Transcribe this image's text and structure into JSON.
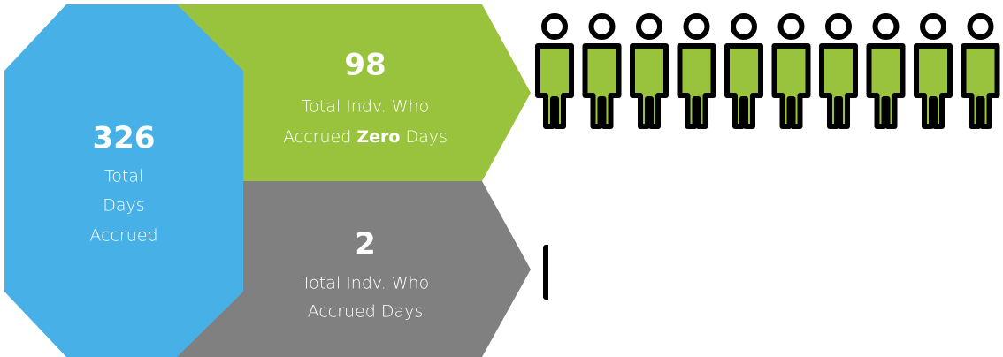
{
  "total": {
    "number": "326",
    "lines": [
      "Total",
      "Days",
      "Accrued"
    ]
  },
  "zero": {
    "number": "98",
    "line1": "Total Indv. Who",
    "line2_before": "Accrued ",
    "line2_bold": "Zero",
    "line2_after": " Days"
  },
  "accrued": {
    "number": "2",
    "line1": "Total Indv. Who",
    "line2": "Accrued Days"
  }
}
